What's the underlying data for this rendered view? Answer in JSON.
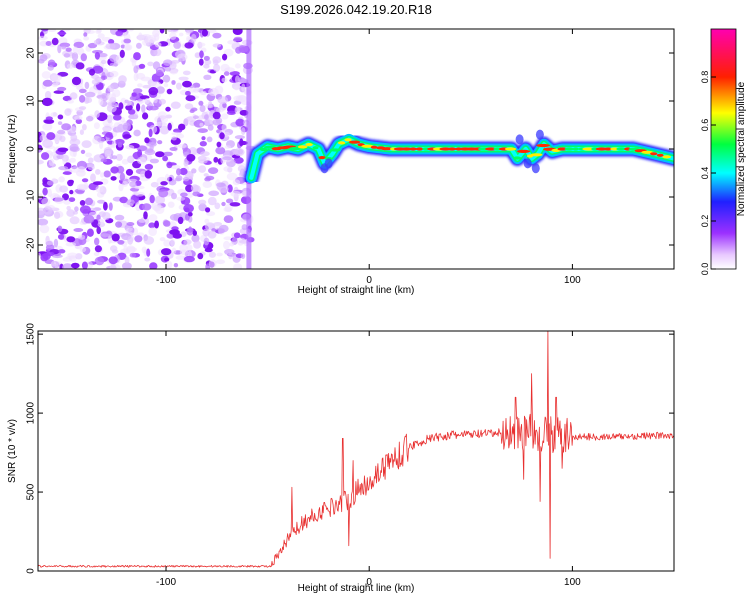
{
  "title": "S199.2026.042.19.20.R18",
  "chart_data": [
    {
      "type": "heatmap",
      "name": "spectrogram",
      "xlabel": "Height of straight line (km)",
      "ylabel": "Frequency (Hz)",
      "xlim": [
        -163,
        150
      ],
      "ylim": [
        -25,
        25
      ],
      "xticks": [
        -100,
        0,
        100
      ],
      "xtick_labels": [
        "-100",
        "0",
        "100"
      ],
      "yticks": [
        -20,
        -10,
        0,
        10,
        20
      ],
      "ytick_labels": [
        "-20",
        "-10",
        "0",
        "10",
        "20"
      ],
      "noise_region_km": [
        -163,
        -58
      ],
      "signal_start_km": -58,
      "carrier_trace": [
        [
          -58,
          -6
        ],
        [
          -55,
          -1
        ],
        [
          -50,
          0.5
        ],
        [
          -45,
          0
        ],
        [
          -40,
          0.5
        ],
        [
          -35,
          0
        ],
        [
          -30,
          1
        ],
        [
          -25,
          0
        ],
        [
          -22,
          -3
        ],
        [
          -18,
          -1
        ],
        [
          -15,
          1
        ],
        [
          -10,
          2
        ],
        [
          -5,
          1
        ],
        [
          0,
          0.5
        ],
        [
          10,
          0
        ],
        [
          20,
          0
        ],
        [
          40,
          0
        ],
        [
          60,
          0
        ],
        [
          70,
          0
        ],
        [
          73,
          -2
        ],
        [
          77,
          0
        ],
        [
          80,
          -2
        ],
        [
          83,
          -1
        ],
        [
          86,
          1
        ],
        [
          90,
          -0.5
        ],
        [
          95,
          0
        ],
        [
          110,
          0
        ],
        [
          130,
          0
        ],
        [
          150,
          -2
        ]
      ],
      "colorbar": {
        "label": "Normalized spectral amplitude",
        "range": [
          0,
          1
        ],
        "ticks": [
          0.0,
          0.2,
          0.4,
          0.6,
          0.8
        ],
        "tick_labels": [
          "0.0",
          "0.2",
          "0.4",
          "0.6",
          "0.8"
        ],
        "colors": [
          "#ffffff",
          "#9b30ff",
          "#2020ff",
          "#00ffff",
          "#00ff00",
          "#ffff00",
          "#ff0000",
          "#ff00aa"
        ]
      }
    },
    {
      "type": "line",
      "name": "snr",
      "xlabel": "Height of straight line (km)",
      "ylabel": "SNR (10 * v/v)",
      "xlim": [
        -163,
        150
      ],
      "ylim": [
        0,
        1520
      ],
      "xticks": [
        -100,
        0,
        100
      ],
      "xtick_labels": [
        "-100",
        "0",
        "100"
      ],
      "yticks": [
        0,
        500,
        1000,
        1500
      ],
      "ytick_labels": [
        "0",
        "500",
        "1000",
        "1500"
      ],
      "color": "#e83030",
      "envelope": [
        [
          -163,
          30
        ],
        [
          -60,
          30
        ],
        [
          -48,
          30
        ],
        [
          -45,
          90
        ],
        [
          -40,
          200
        ],
        [
          -35,
          280
        ],
        [
          -30,
          330
        ],
        [
          -20,
          400
        ],
        [
          -10,
          460
        ],
        [
          0,
          570
        ],
        [
          10,
          690
        ],
        [
          20,
          790
        ],
        [
          30,
          840
        ],
        [
          40,
          860
        ],
        [
          50,
          865
        ],
        [
          60,
          870
        ],
        [
          70,
          880
        ],
        [
          80,
          880
        ],
        [
          90,
          860
        ],
        [
          100,
          850
        ],
        [
          120,
          850
        ],
        [
          150,
          860
        ]
      ],
      "spikes": [
        [
          -38,
          530
        ],
        [
          -20,
          380
        ],
        [
          -13,
          840
        ],
        [
          -10,
          160
        ],
        [
          -8,
          700
        ],
        [
          72,
          1100
        ],
        [
          76,
          580
        ],
        [
          80,
          1250
        ],
        [
          84,
          440
        ],
        [
          88,
          1520
        ],
        [
          89,
          80
        ],
        [
          92,
          1100
        ],
        [
          95,
          650
        ]
      ]
    }
  ]
}
